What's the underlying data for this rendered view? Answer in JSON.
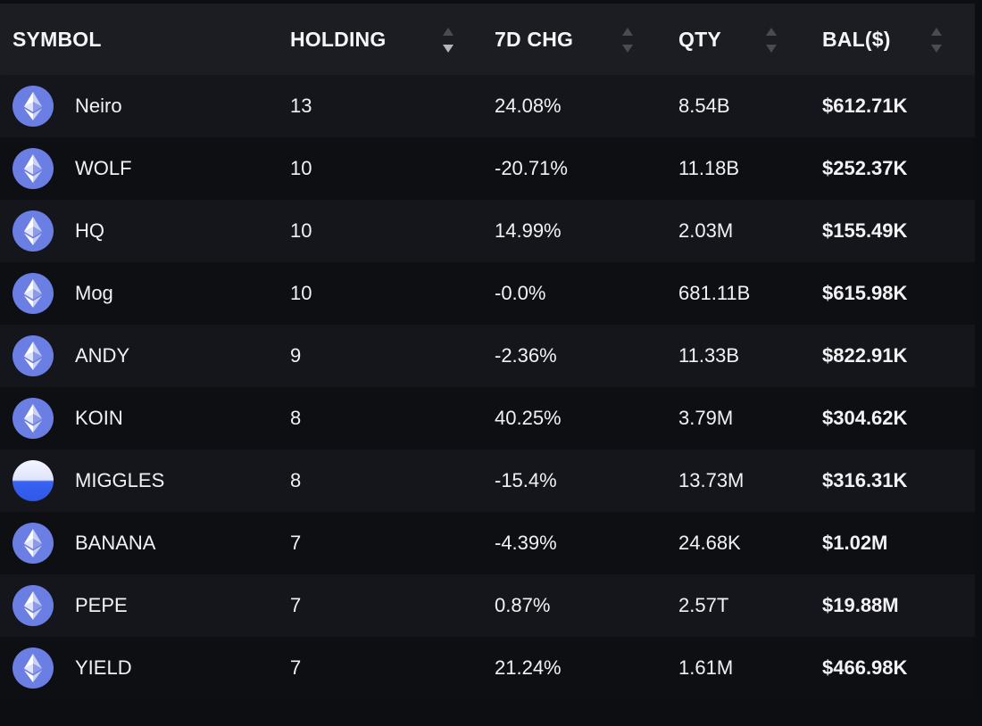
{
  "columns": {
    "symbol": "SYMBOL",
    "holding": "HOLDING",
    "chg": "7D CHG",
    "qty": "QTY",
    "bal": "BAL($)"
  },
  "colors": {
    "positive": "#a9c98a",
    "negative": "#dc865a",
    "eth_icon_bg": "#6b7ee3"
  },
  "rows": [
    {
      "icon": "ethereum-icon",
      "symbol": "Neiro",
      "holding": "13",
      "chg": "24.08%",
      "trend": "positive",
      "qty": "8.54B",
      "bal": "$612.71K"
    },
    {
      "icon": "ethereum-icon",
      "symbol": "WOLF",
      "holding": "10",
      "chg": "-20.71%",
      "trend": "negative",
      "qty": "11.18B",
      "bal": "$252.37K"
    },
    {
      "icon": "ethereum-icon",
      "symbol": "HQ",
      "holding": "10",
      "chg": "14.99%",
      "trend": "positive",
      "qty": "2.03M",
      "bal": "$155.49K"
    },
    {
      "icon": "ethereum-icon",
      "symbol": "Mog",
      "holding": "10",
      "chg": "-0.0%",
      "trend": "negative",
      "qty": "681.11B",
      "bal": "$615.98K"
    },
    {
      "icon": "ethereum-icon",
      "symbol": "ANDY",
      "holding": "9",
      "chg": "-2.36%",
      "trend": "negative",
      "qty": "11.33B",
      "bal": "$822.91K"
    },
    {
      "icon": "ethereum-icon",
      "symbol": "KOIN",
      "holding": "8",
      "chg": "40.25%",
      "trend": "positive",
      "qty": "3.79M",
      "bal": "$304.62K"
    },
    {
      "icon": "miggles-token-icon",
      "symbol": "MIGGLES",
      "holding": "8",
      "chg": "-15.4%",
      "trend": "negative",
      "qty": "13.73M",
      "bal": "$316.31K"
    },
    {
      "icon": "ethereum-icon",
      "symbol": "BANANA",
      "holding": "7",
      "chg": "-4.39%",
      "trend": "negative",
      "qty": "24.68K",
      "bal": "$1.02M"
    },
    {
      "icon": "ethereum-icon",
      "symbol": "PEPE",
      "holding": "7",
      "chg": "0.87%",
      "trend": "positive",
      "qty": "2.57T",
      "bal": "$19.88M"
    },
    {
      "icon": "ethereum-icon",
      "symbol": "YIELD",
      "holding": "7",
      "chg": "21.24%",
      "trend": "positive",
      "qty": "1.61M",
      "bal": "$466.98K"
    }
  ]
}
